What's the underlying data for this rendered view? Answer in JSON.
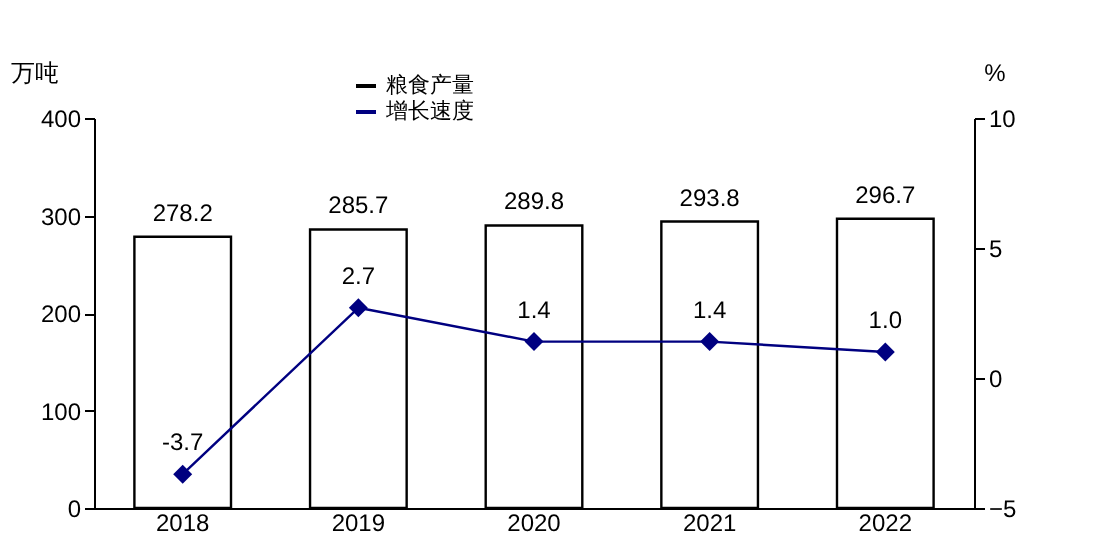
{
  "chart_data": {
    "type": "bar",
    "ylabel": "万吨",
    "y2label": "%",
    "categories": [
      "2018",
      "2019",
      "2020",
      "2021",
      "2022"
    ],
    "series": [
      {
        "name": "粮食产量",
        "color": "#000000",
        "values": [
          278.2,
          285.7,
          289.8,
          293.8,
          296.7
        ]
      },
      {
        "name": "增长速度",
        "type": "line",
        "axis": "y2",
        "color": "#000080",
        "marker": "diamond",
        "values": [
          -3.7,
          2.7,
          1.4,
          1.4,
          1.0
        ],
        "value_labels": [
          "-3.7",
          "2.7",
          "1.4",
          "1.4",
          "1.0"
        ]
      }
    ],
    "ylim": [
      0,
      400
    ],
    "yticks": [
      0,
      100,
      200,
      300,
      400
    ],
    "y2lim": [
      -5,
      10
    ],
    "y2ticks": [
      -5,
      0,
      5,
      10
    ],
    "data_labels": true,
    "grid": false,
    "legend": "top"
  }
}
